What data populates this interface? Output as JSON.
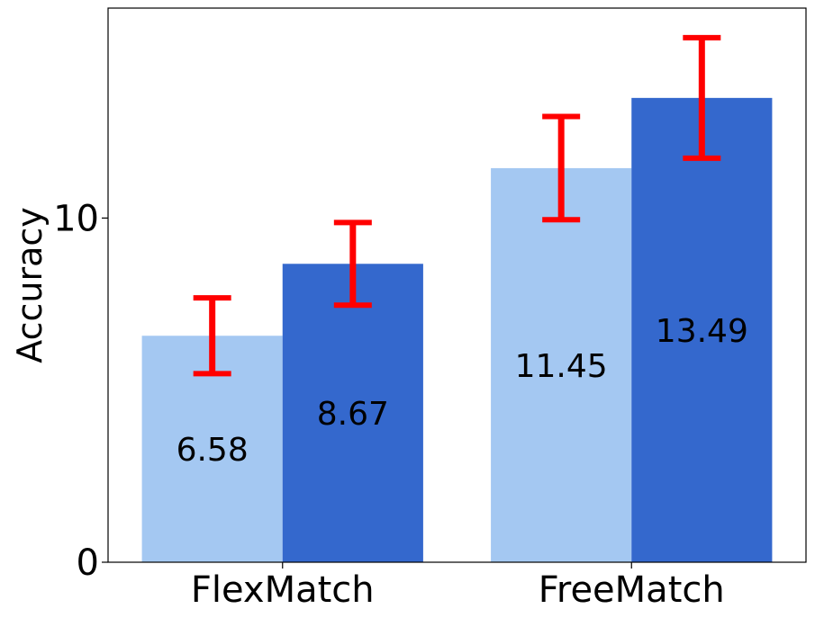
{
  "chart_data": {
    "type": "bar",
    "title": "",
    "xlabel": "",
    "ylabel": "Accuracy",
    "categories": [
      "FlexMatch",
      "FreeMatch"
    ],
    "series": [
      {
        "values": [
          6.58,
          11.45
        ],
        "errors": [
          1.1,
          1.5
        ],
        "labels": [
          "6.58",
          "11.45"
        ]
      },
      {
        "values": [
          8.67,
          13.49
        ],
        "errors": [
          1.2,
          1.75
        ],
        "labels": [
          "8.67",
          "13.49"
        ]
      }
    ],
    "yticks": [
      0,
      10
    ],
    "ytick_labels": [
      "0",
      "10"
    ],
    "ylim": [
      0,
      16.1
    ],
    "grid": false,
    "colors": {
      "series": [
        "#a4c8f2",
        "#3468cd"
      ],
      "error_bar": "#ff0000",
      "axis": "#000000"
    }
  }
}
